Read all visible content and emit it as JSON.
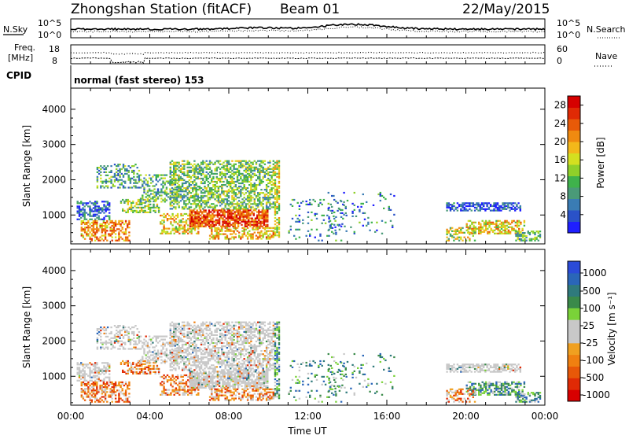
{
  "header": {
    "station": "Zhongshan Station (fitACF)",
    "beam": "Beam 01",
    "date": "22/May/2015"
  },
  "noise_panel": {
    "left_label": "N.Sky",
    "right_label": "N.Search",
    "left_ticks": [
      "10^5",
      "10^0"
    ],
    "right_ticks": [
      "10^5",
      "10^0"
    ]
  },
  "freq_panel": {
    "left_label_line1": "Freq.",
    "left_label_line2": "[MHz]",
    "right_label": "Nave",
    "left_ticks": [
      "18",
      "8"
    ],
    "right_ticks": [
      "60",
      "0"
    ]
  },
  "cpid": {
    "label": "CPID",
    "text": "normal (fast stereo) 153"
  },
  "chart_data": [
    {
      "type": "heatmap",
      "title": "",
      "quantity": "Power",
      "ylabel": "Slant Range [km]",
      "xlabel": "",
      "ylim": [
        180,
        4600
      ],
      "xlim": [
        0,
        24
      ],
      "y_ticks": [
        "1000",
        "2000",
        "3000",
        "4000"
      ],
      "colorbar_label": "Power [dB]",
      "colorbar_ticks": [
        "4",
        "8",
        "12",
        "16",
        "20",
        "24",
        "28"
      ],
      "colorbar_colors": [
        "#1f1fff",
        "#2a52c8",
        "#3a7cb4",
        "#4a9a78",
        "#3fb24c",
        "#8fd02a",
        "#d4e020",
        "#f3b81a",
        "#f08a10",
        "#e85a08",
        "#e02a05",
        "#d60000"
      ]
    },
    {
      "type": "heatmap",
      "title": "",
      "quantity": "Velocity",
      "ylabel": "Slant Range [km]",
      "xlabel": "Time UT",
      "ylim": [
        180,
        4600
      ],
      "xlim": [
        0,
        24
      ],
      "y_ticks": [
        "1000",
        "2000",
        "3000",
        "4000"
      ],
      "x_ticks": [
        "00:00",
        "04:00",
        "08:00",
        "12:00",
        "16:00",
        "20:00",
        "00:00"
      ],
      "colorbar_label": "Velocity [m s⁻¹]",
      "colorbar_ticks": [
        "1000",
        "500",
        "100",
        "25",
        "-25",
        "-100",
        "-500",
        "-1000"
      ],
      "colorbar_colors": [
        "#2b4bd8",
        "#2a66b8",
        "#2f7a7c",
        "#3a8a4a",
        "#7ad238",
        "#c8c8c8",
        "#c8c8c8",
        "#f0a020",
        "#f08010",
        "#e85808",
        "#e02a05",
        "#d80000"
      ]
    }
  ]
}
